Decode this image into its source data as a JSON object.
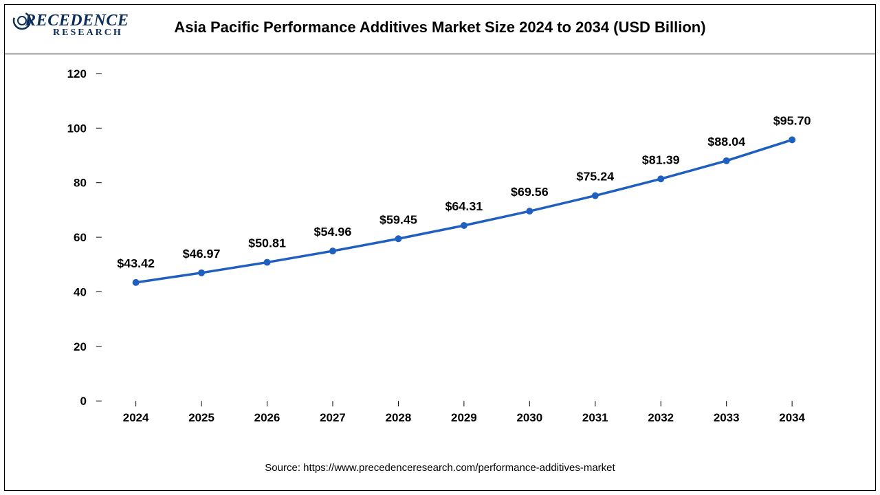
{
  "header": {
    "title": "Asia Pacific Performance Additives Market Size 2024 to 2034 (USD Billion)",
    "logo_main": "PRECEDENCE",
    "logo_sub": "RESEARCH",
    "logo_color": "#0b2e5a"
  },
  "chart": {
    "type": "line",
    "years": [
      "2024",
      "2025",
      "2026",
      "2027",
      "2028",
      "2029",
      "2030",
      "2031",
      "2032",
      "2033",
      "2034"
    ],
    "values": [
      43.42,
      46.97,
      50.81,
      54.96,
      59.45,
      64.31,
      69.56,
      75.24,
      81.39,
      88.04,
      95.7
    ],
    "value_labels": [
      "$43.42",
      "$46.97",
      "$50.81",
      "$54.96",
      "$59.45",
      "$64.31",
      "$69.56",
      "$75.24",
      "$81.39",
      "$88.04",
      "$95.70"
    ],
    "ylim": [
      0,
      120
    ],
    "ytick_step": 20,
    "yticks": [
      0,
      20,
      40,
      60,
      80,
      100,
      120
    ],
    "line_color": "#1f5fbf",
    "marker_color": "#1f5fbf",
    "line_width": 3.5,
    "marker_radius": 5,
    "background_color": "#ffffff",
    "axis_tick_fontsize": 17,
    "data_label_fontsize": 18,
    "label_offset_y": -22,
    "title_fontsize": 22,
    "border_color": "#000000"
  },
  "source": {
    "text": "Source: https://www.precedenceresearch.com/performance-additives-market"
  }
}
